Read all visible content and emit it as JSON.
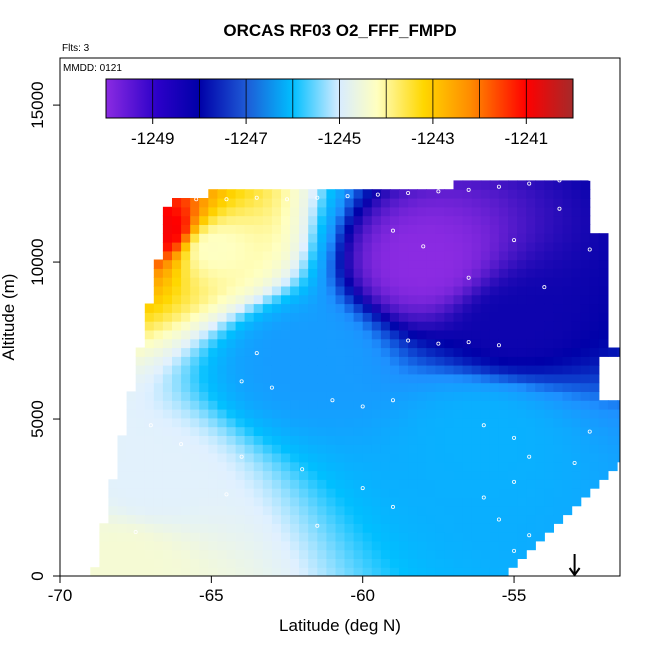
{
  "chart_data": {
    "type": "heatmap",
    "title": "ORCAS RF03 O2_FFF_FMPD",
    "annotations": [
      "Flts: 3",
      "MMDD: 0121"
    ],
    "xlabel": "Latitude (deg N)",
    "ylabel": "Altitude (m)",
    "xlim": [
      -70,
      -51.5
    ],
    "ylim": [
      0,
      16500
    ],
    "xticks": [
      -70,
      -65,
      -60,
      -55
    ],
    "yticks": [
      0,
      5000,
      10000,
      15000
    ],
    "colorbar": {
      "range": [
        -1250,
        -1240
      ],
      "ticks": [
        -1249,
        -1247,
        -1245,
        -1243,
        -1241
      ],
      "colors": [
        "#8b2be2",
        "#0000a8",
        "#1e90ff",
        "#00bfff",
        "#e0f0ff",
        "#ffffc0",
        "#ffd700",
        "#ff8c00",
        "#ff0000",
        "#a52a2a"
      ]
    },
    "arrow_marker_latitude": -53,
    "field_regions": [
      {
        "lat": -66.5,
        "alt": 11000,
        "value": -1241
      },
      {
        "lat": -65.0,
        "alt": 10500,
        "value": -1244.5
      },
      {
        "lat": -58.0,
        "alt": 10000,
        "value": -1250
      },
      {
        "lat": -55.0,
        "alt": 8000,
        "value": -1249
      },
      {
        "lat": -62.0,
        "alt": 7000,
        "value": -1247.5
      },
      {
        "lat": -56.0,
        "alt": 4500,
        "value": -1247
      },
      {
        "lat": -67.0,
        "alt": 3000,
        "value": -1245.5
      },
      {
        "lat": -68.0,
        "alt": 500,
        "value": -1244.8
      }
    ],
    "flight_points": [
      {
        "lat": -66.5,
        "alt": 12000
      },
      {
        "lat": -65.5,
        "alt": 12000
      },
      {
        "lat": -64.5,
        "alt": 12000
      },
      {
        "lat": -63.5,
        "alt": 12050
      },
      {
        "lat": -62.5,
        "alt": 12000
      },
      {
        "lat": -61.5,
        "alt": 12050
      },
      {
        "lat": -60.5,
        "alt": 12100
      },
      {
        "lat": -59.5,
        "alt": 12150
      },
      {
        "lat": -58.5,
        "alt": 12200
      },
      {
        "lat": -57.5,
        "alt": 12250
      },
      {
        "lat": -56.5,
        "alt": 12300
      },
      {
        "lat": -55.5,
        "alt": 12400
      },
      {
        "lat": -54.5,
        "alt": 12500
      },
      {
        "lat": -53.5,
        "alt": 12600
      },
      {
        "lat": -52.5,
        "alt": 12650
      },
      {
        "lat": -59.0,
        "alt": 11000
      },
      {
        "lat": -58.0,
        "alt": 10500
      },
      {
        "lat": -56.5,
        "alt": 9500
      },
      {
        "lat": -55.0,
        "alt": 10700
      },
      {
        "lat": -53.5,
        "alt": 11700
      },
      {
        "lat": -52.5,
        "alt": 10400
      },
      {
        "lat": -54.0,
        "alt": 9200
      },
      {
        "lat": -58.5,
        "alt": 7500
      },
      {
        "lat": -57.5,
        "alt": 7400
      },
      {
        "lat": -56.5,
        "alt": 7450
      },
      {
        "lat": -55.5,
        "alt": 7350
      },
      {
        "lat": -63.5,
        "alt": 7100
      },
      {
        "lat": -64.0,
        "alt": 6200
      },
      {
        "lat": -63.0,
        "alt": 6000
      },
      {
        "lat": -61.0,
        "alt": 5600
      },
      {
        "lat": -60.0,
        "alt": 5400
      },
      {
        "lat": -59.0,
        "alt": 5600
      },
      {
        "lat": -56.0,
        "alt": 4800
      },
      {
        "lat": -55.0,
        "alt": 4400
      },
      {
        "lat": -54.5,
        "alt": 3800
      },
      {
        "lat": -55.0,
        "alt": 3000
      },
      {
        "lat": -56.0,
        "alt": 2500
      },
      {
        "lat": -55.5,
        "alt": 1800
      },
      {
        "lat": -54.5,
        "alt": 1300
      },
      {
        "lat": -55.0,
        "alt": 800
      },
      {
        "lat": -53.0,
        "alt": 3600
      },
      {
        "lat": -52.5,
        "alt": 4600
      },
      {
        "lat": -67.0,
        "alt": 4800
      },
      {
        "lat": -66.0,
        "alt": 4200
      },
      {
        "lat": -64.0,
        "alt": 3800
      },
      {
        "lat": -62.0,
        "alt": 3400
      },
      {
        "lat": -60.0,
        "alt": 2800
      },
      {
        "lat": -59.0,
        "alt": 2200
      },
      {
        "lat": -61.5,
        "alt": 1600
      },
      {
        "lat": -64.5,
        "alt": 2600
      },
      {
        "lat": -67.5,
        "alt": 1400
      }
    ]
  }
}
